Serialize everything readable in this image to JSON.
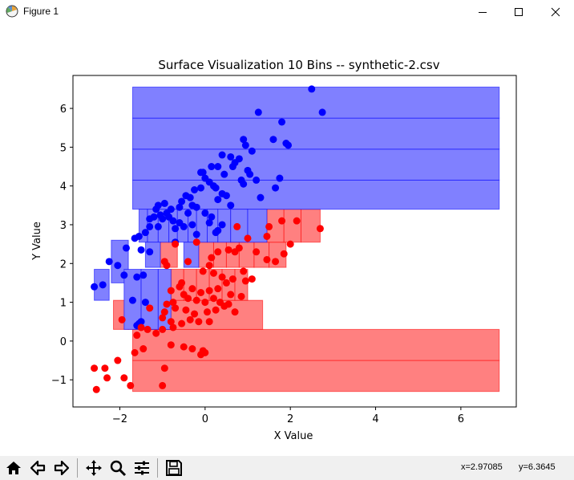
{
  "window": {
    "title": "Figure 1"
  },
  "toolbar": {
    "buttons": [
      {
        "name": "home-icon",
        "tooltip": "Home"
      },
      {
        "name": "back-arrow-icon",
        "tooltip": "Back"
      },
      {
        "name": "forward-arrow-icon",
        "tooltip": "Forward"
      },
      {
        "name": "pan-move-icon",
        "tooltip": "Pan"
      },
      {
        "name": "zoom-magnifier-icon",
        "tooltip": "Zoom"
      },
      {
        "name": "configure-subplots-icon",
        "tooltip": "Subplots"
      },
      {
        "name": "save-floppy-icon",
        "tooltip": "Save"
      }
    ],
    "coord_x": "x=2.97085",
    "coord_y": "y=6.3645"
  },
  "colors": {
    "blue": "#0000ff",
    "red": "#ff0000",
    "blue_fill": "#8080ff",
    "red_fill": "#ff8080"
  },
  "chart_data": {
    "type": "scatter",
    "title": "Surface Visualization 10 Bins -- synthetic-2.csv",
    "xlabel": "X Value",
    "ylabel": "Y Value",
    "xlim": [
      -3.1,
      7.3
    ],
    "ylim": [
      -1.7,
      6.85
    ],
    "xticks": [
      -2,
      0,
      2,
      4,
      6
    ],
    "yticks": [
      -1,
      0,
      1,
      2,
      3,
      4,
      5,
      6
    ],
    "grid": false,
    "series": [
      {
        "color": "blue",
        "points": [
          [
            2.5,
            6.5
          ],
          [
            2.75,
            5.9
          ],
          [
            1.25,
            5.9
          ],
          [
            1.8,
            5.65
          ],
          [
            1.9,
            5.1
          ],
          [
            1.95,
            5.05
          ],
          [
            1.6,
            5.2
          ],
          [
            0.9,
            5.2
          ],
          [
            1.1,
            4.9
          ],
          [
            0.95,
            5.05
          ],
          [
            1.75,
            4.2
          ],
          [
            1.65,
            3.95
          ],
          [
            0.7,
            4.6
          ],
          [
            0.8,
            4.7
          ],
          [
            0.6,
            4.75
          ],
          [
            0.65,
            4.5
          ],
          [
            1.0,
            4.4
          ],
          [
            1.05,
            4.3
          ],
          [
            1.2,
            4.15
          ],
          [
            0.4,
            4.8
          ],
          [
            0.3,
            4.5
          ],
          [
            0.45,
            4.3
          ],
          [
            0.15,
            4.5
          ],
          [
            -0.1,
            4.35
          ],
          [
            -0.05,
            4.35
          ],
          [
            0.0,
            4.2
          ],
          [
            0.1,
            4.1
          ],
          [
            0.2,
            4.0
          ],
          [
            0.25,
            3.95
          ],
          [
            0.4,
            3.8
          ],
          [
            0.5,
            3.75
          ],
          [
            0.85,
            4.15
          ],
          [
            0.9,
            4.05
          ],
          [
            1.3,
            3.7
          ],
          [
            0.3,
            3.65
          ],
          [
            0.6,
            3.5
          ],
          [
            -0.1,
            3.95
          ],
          [
            -0.25,
            3.9
          ],
          [
            -0.35,
            3.7
          ],
          [
            -0.55,
            3.6
          ],
          [
            -0.45,
            3.75
          ],
          [
            -0.3,
            3.5
          ],
          [
            -0.2,
            3.45
          ],
          [
            -0.6,
            3.45
          ],
          [
            -0.4,
            3.3
          ],
          [
            -0.8,
            3.4
          ],
          [
            -0.9,
            3.3
          ],
          [
            -0.95,
            3.55
          ],
          [
            -1.1,
            3.5
          ],
          [
            -1.15,
            3.4
          ],
          [
            -1.05,
            3.25
          ],
          [
            -0.85,
            3.2
          ],
          [
            -0.75,
            3.1
          ],
          [
            -1.0,
            3.15
          ],
          [
            -1.2,
            3.2
          ],
          [
            -1.3,
            3.15
          ],
          [
            0.0,
            3.3
          ],
          [
            0.15,
            3.2
          ],
          [
            -0.6,
            3.05
          ],
          [
            0.1,
            3.05
          ],
          [
            -0.3,
            3.0
          ],
          [
            -0.5,
            2.95
          ],
          [
            -0.7,
            2.9
          ],
          [
            -1.1,
            2.95
          ],
          [
            -1.3,
            2.95
          ],
          [
            -1.4,
            2.8
          ],
          [
            -1.55,
            2.7
          ],
          [
            -1.65,
            2.65
          ],
          [
            -1.5,
            2.35
          ],
          [
            -1.3,
            2.3
          ],
          [
            0.3,
            2.85
          ],
          [
            0.25,
            2.8
          ],
          [
            -0.2,
            2.75
          ],
          [
            0.4,
            3.0
          ],
          [
            -0.7,
            2.55
          ],
          [
            -1.85,
            2.4
          ],
          [
            -2.25,
            2.05
          ],
          [
            -2.05,
            1.95
          ],
          [
            -1.9,
            1.7
          ],
          [
            -1.6,
            1.65
          ],
          [
            -1.45,
            1.7
          ],
          [
            -2.6,
            1.4
          ],
          [
            -2.4,
            1.45
          ],
          [
            -1.7,
            1.05
          ],
          [
            -1.4,
            1.0
          ],
          [
            -1.5,
            0.5
          ],
          [
            -1.55,
            0.45
          ],
          [
            -1.6,
            0.4
          ]
        ]
      },
      {
        "color": "red",
        "points": [
          [
            1.8,
            3.1
          ],
          [
            2.15,
            3.1
          ],
          [
            2.7,
            2.9
          ],
          [
            1.5,
            2.95
          ],
          [
            1.45,
            2.7
          ],
          [
            0.75,
            2.95
          ],
          [
            1.0,
            2.65
          ],
          [
            2.0,
            2.5
          ],
          [
            1.85,
            2.25
          ],
          [
            1.65,
            2.05
          ],
          [
            1.45,
            2.1
          ],
          [
            1.2,
            2.3
          ],
          [
            0.8,
            2.4
          ],
          [
            0.7,
            2.3
          ],
          [
            0.55,
            2.35
          ],
          [
            0.3,
            2.3
          ],
          [
            0.15,
            2.15
          ],
          [
            0.1,
            1.95
          ],
          [
            -0.2,
            2.55
          ],
          [
            -0.4,
            2.05
          ],
          [
            -0.7,
            2.5
          ],
          [
            -0.95,
            2.05
          ],
          [
            -0.9,
            1.95
          ],
          [
            -0.05,
            1.8
          ],
          [
            0.2,
            1.75
          ],
          [
            0.9,
            1.8
          ],
          [
            1.1,
            1.6
          ],
          [
            0.95,
            1.55
          ],
          [
            0.65,
            1.6
          ],
          [
            0.4,
            1.65
          ],
          [
            0.5,
            1.5
          ],
          [
            0.3,
            1.35
          ],
          [
            0.1,
            1.3
          ],
          [
            -0.1,
            1.25
          ],
          [
            -0.3,
            1.35
          ],
          [
            -0.55,
            1.5
          ],
          [
            -0.6,
            1.4
          ],
          [
            -0.8,
            1.3
          ],
          [
            -0.5,
            1.2
          ],
          [
            -0.4,
            1.1
          ],
          [
            -0.2,
            1.05
          ],
          [
            0.0,
            1.0
          ],
          [
            0.2,
            1.1
          ],
          [
            0.35,
            1.0
          ],
          [
            0.55,
            0.95
          ],
          [
            0.85,
            1.15
          ],
          [
            0.6,
            1.2
          ],
          [
            -0.75,
            1.0
          ],
          [
            -0.9,
            0.95
          ],
          [
            -0.7,
            0.85
          ],
          [
            -0.45,
            0.8
          ],
          [
            -0.25,
            0.7
          ],
          [
            0.05,
            0.75
          ],
          [
            0.25,
            0.8
          ],
          [
            0.45,
            0.9
          ],
          [
            0.7,
            0.75
          ],
          [
            -0.95,
            0.75
          ],
          [
            -1.0,
            0.6
          ],
          [
            -0.8,
            0.5
          ],
          [
            -0.55,
            0.45
          ],
          [
            -0.35,
            0.55
          ],
          [
            -0.15,
            0.5
          ],
          [
            0.1,
            0.5
          ],
          [
            -1.3,
            0.85
          ],
          [
            -1.5,
            0.35
          ],
          [
            -1.35,
            0.3
          ],
          [
            -1.15,
            0.2
          ],
          [
            -1.0,
            0.3
          ],
          [
            -0.75,
            0.35
          ],
          [
            -1.6,
            0.15
          ],
          [
            -1.95,
            0.55
          ],
          [
            -0.8,
            -0.1
          ],
          [
            -0.5,
            -0.15
          ],
          [
            -0.3,
            -0.2
          ],
          [
            -0.05,
            -0.25
          ],
          [
            -0.1,
            -0.35
          ],
          [
            0.0,
            -0.3
          ],
          [
            -1.45,
            -0.2
          ],
          [
            -1.65,
            -0.3
          ],
          [
            -2.05,
            -0.5
          ],
          [
            -2.6,
            -0.7
          ],
          [
            -2.35,
            -0.7
          ],
          [
            -2.3,
            -0.95
          ],
          [
            -1.9,
            -0.95
          ],
          [
            -1.75,
            -1.15
          ],
          [
            -2.55,
            -1.25
          ],
          [
            -0.95,
            -0.7
          ],
          [
            -1.0,
            -1.15
          ]
        ]
      }
    ],
    "bins": {
      "blue": [
        [
          -1.7,
          3.4,
          6.9,
          4.15
        ],
        [
          -1.7,
          4.15,
          6.9,
          4.95
        ],
        [
          -1.7,
          4.95,
          6.9,
          5.75
        ],
        [
          -1.7,
          5.75,
          6.9,
          6.55
        ],
        [
          -1.55,
          2.55,
          -1.35,
          3.4
        ],
        [
          -1.35,
          2.55,
          -1.1,
          3.4
        ],
        [
          -1.1,
          2.55,
          -0.85,
          3.4
        ],
        [
          -0.85,
          2.55,
          -0.65,
          3.4
        ],
        [
          -0.65,
          2.55,
          -0.4,
          3.4
        ],
        [
          -0.4,
          2.55,
          -0.2,
          3.4
        ],
        [
          -0.2,
          2.55,
          0.05,
          3.4
        ],
        [
          0.05,
          2.55,
          0.3,
          3.4
        ],
        [
          0.3,
          2.55,
          0.6,
          3.4
        ],
        [
          0.6,
          2.55,
          1.0,
          3.4
        ],
        [
          1.0,
          2.55,
          1.45,
          3.4
        ],
        [
          -2.2,
          1.5,
          -1.8,
          2.6
        ],
        [
          -1.4,
          1.9,
          -1.05,
          2.55
        ],
        [
          -0.5,
          1.9,
          -0.15,
          2.55
        ],
        [
          -2.6,
          1.05,
          -2.25,
          1.85
        ],
        [
          -1.9,
          0.3,
          -1.5,
          1.85
        ],
        [
          -1.5,
          0.3,
          -1.1,
          1.85
        ],
        [
          -1.1,
          0.3,
          -0.8,
          1.85
        ]
      ],
      "red": [
        [
          -1.7,
          -1.3,
          6.9,
          -0.5
        ],
        [
          -1.7,
          -0.5,
          6.9,
          0.3
        ],
        [
          -2.15,
          0.3,
          -1.8,
          1.05
        ],
        [
          -1.8,
          0.3,
          1.35,
          1.05
        ],
        [
          -0.8,
          1.05,
          -0.5,
          1.85
        ],
        [
          -0.5,
          1.05,
          -0.2,
          1.85
        ],
        [
          -0.2,
          1.05,
          0.1,
          1.85
        ],
        [
          0.1,
          1.05,
          0.4,
          1.85
        ],
        [
          0.4,
          1.05,
          0.7,
          1.85
        ],
        [
          0.7,
          1.05,
          1.0,
          1.85
        ],
        [
          -1.05,
          1.9,
          -0.65,
          2.55
        ],
        [
          -0.15,
          1.9,
          0.2,
          2.55
        ],
        [
          0.2,
          1.9,
          0.5,
          2.55
        ],
        [
          0.5,
          1.9,
          0.8,
          2.55
        ],
        [
          0.8,
          1.9,
          1.15,
          2.55
        ],
        [
          1.15,
          1.9,
          1.5,
          2.55
        ],
        [
          1.5,
          1.9,
          1.9,
          2.55
        ],
        [
          0.6,
          2.55,
          1.0,
          3.4
        ],
        [
          1.45,
          2.55,
          1.85,
          3.4
        ],
        [
          1.85,
          2.55,
          2.25,
          3.4
        ],
        [
          2.25,
          2.55,
          2.7,
          3.4
        ]
      ]
    }
  }
}
